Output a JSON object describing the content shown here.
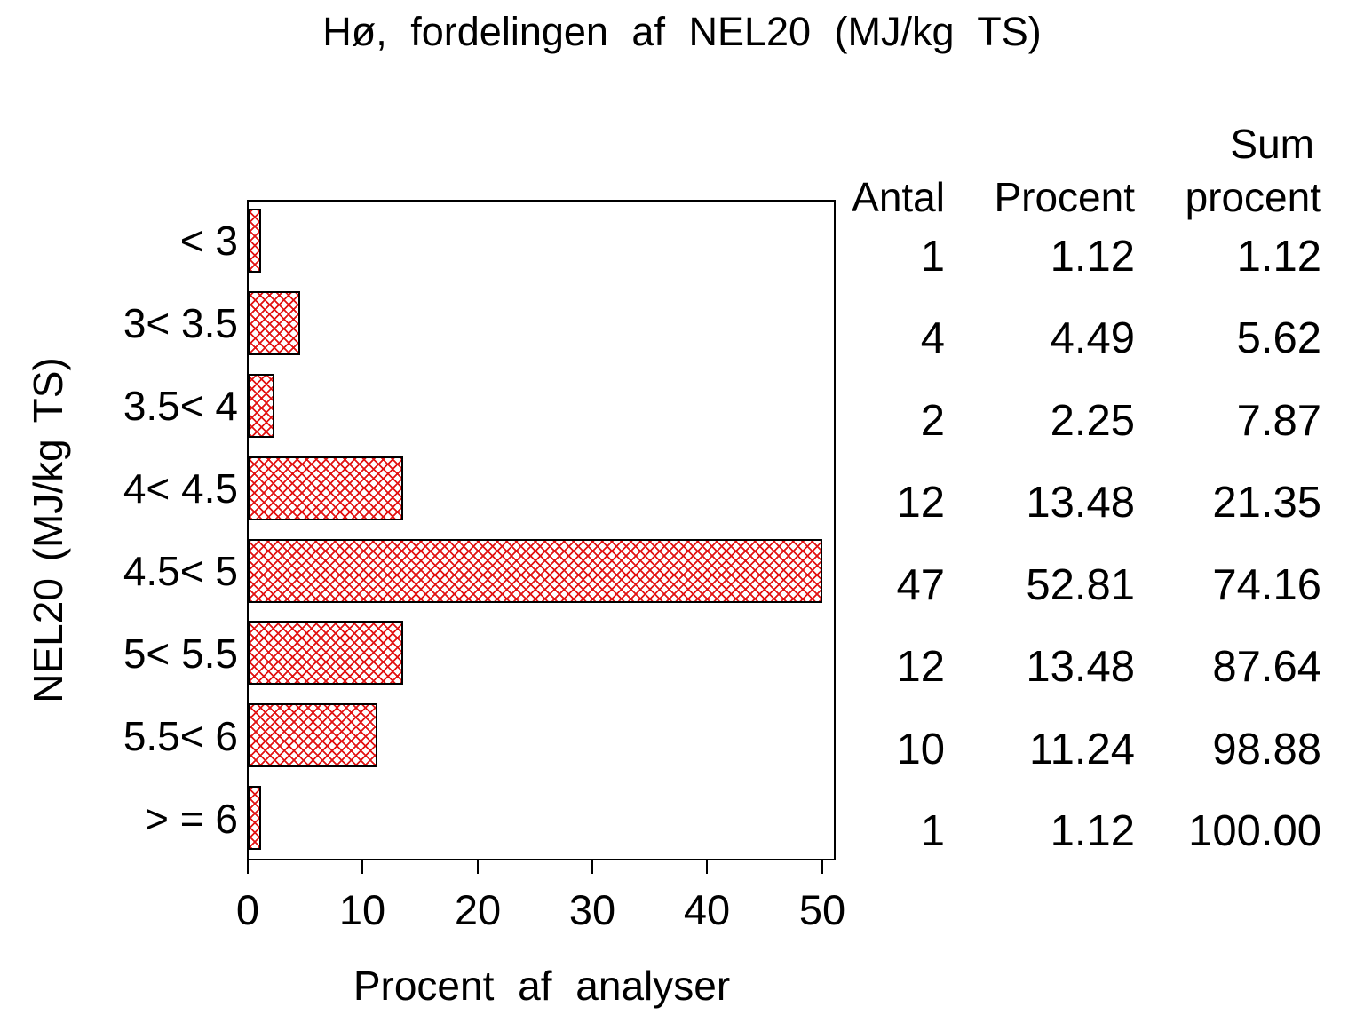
{
  "title": "Hø, fordelingen af NEL20 (MJ/kg TS)",
  "chart_data": {
    "type": "bar",
    "orientation": "horizontal",
    "title": "Hø, fordelingen af NEL20 (MJ/kg TS)",
    "xlabel": "Procent af analyser",
    "ylabel": "NEL20 (MJ/kg TS)",
    "categories": [
      "< 3",
      "3< 3.5",
      "3.5< 4",
      "4< 4.5",
      "4.5< 5",
      "5< 5.5",
      "5.5< 6",
      "> = 6"
    ],
    "values": [
      1.12,
      4.49,
      2.25,
      13.48,
      52.81,
      13.48,
      11.24,
      1.12
    ],
    "counts": [
      1,
      4,
      2,
      12,
      47,
      12,
      10,
      1
    ],
    "cumulative_percent": [
      1.12,
      5.62,
      7.87,
      21.35,
      74.16,
      87.64,
      98.88,
      100.0
    ],
    "xticks": [
      "0",
      "10",
      "20",
      "30",
      "40",
      "50"
    ],
    "xlim": [
      0,
      51.3
    ],
    "grid": false,
    "bar_fill_style": "diagonal-crosshatch",
    "hatch_color": "#e21414",
    "bar_border_color": "#000000",
    "frame_color": "#000000"
  },
  "table": {
    "headers": {
      "antal": "Antal",
      "procent": "Procent",
      "sum_line1": "Sum",
      "sum_line2": "procent"
    },
    "rows": [
      {
        "antal": "1",
        "procent": "1.12",
        "sum": "1.12"
      },
      {
        "antal": "4",
        "procent": "4.49",
        "sum": "5.62"
      },
      {
        "antal": "2",
        "procent": "2.25",
        "sum": "7.87"
      },
      {
        "antal": "12",
        "procent": "13.48",
        "sum": "21.35"
      },
      {
        "antal": "47",
        "procent": "52.81",
        "sum": "74.16"
      },
      {
        "antal": "12",
        "procent": "13.48",
        "sum": "87.64"
      },
      {
        "antal": "10",
        "procent": "11.24",
        "sum": "98.88"
      },
      {
        "antal": "1",
        "procent": "1.12",
        "sum": "100.00"
      }
    ]
  }
}
